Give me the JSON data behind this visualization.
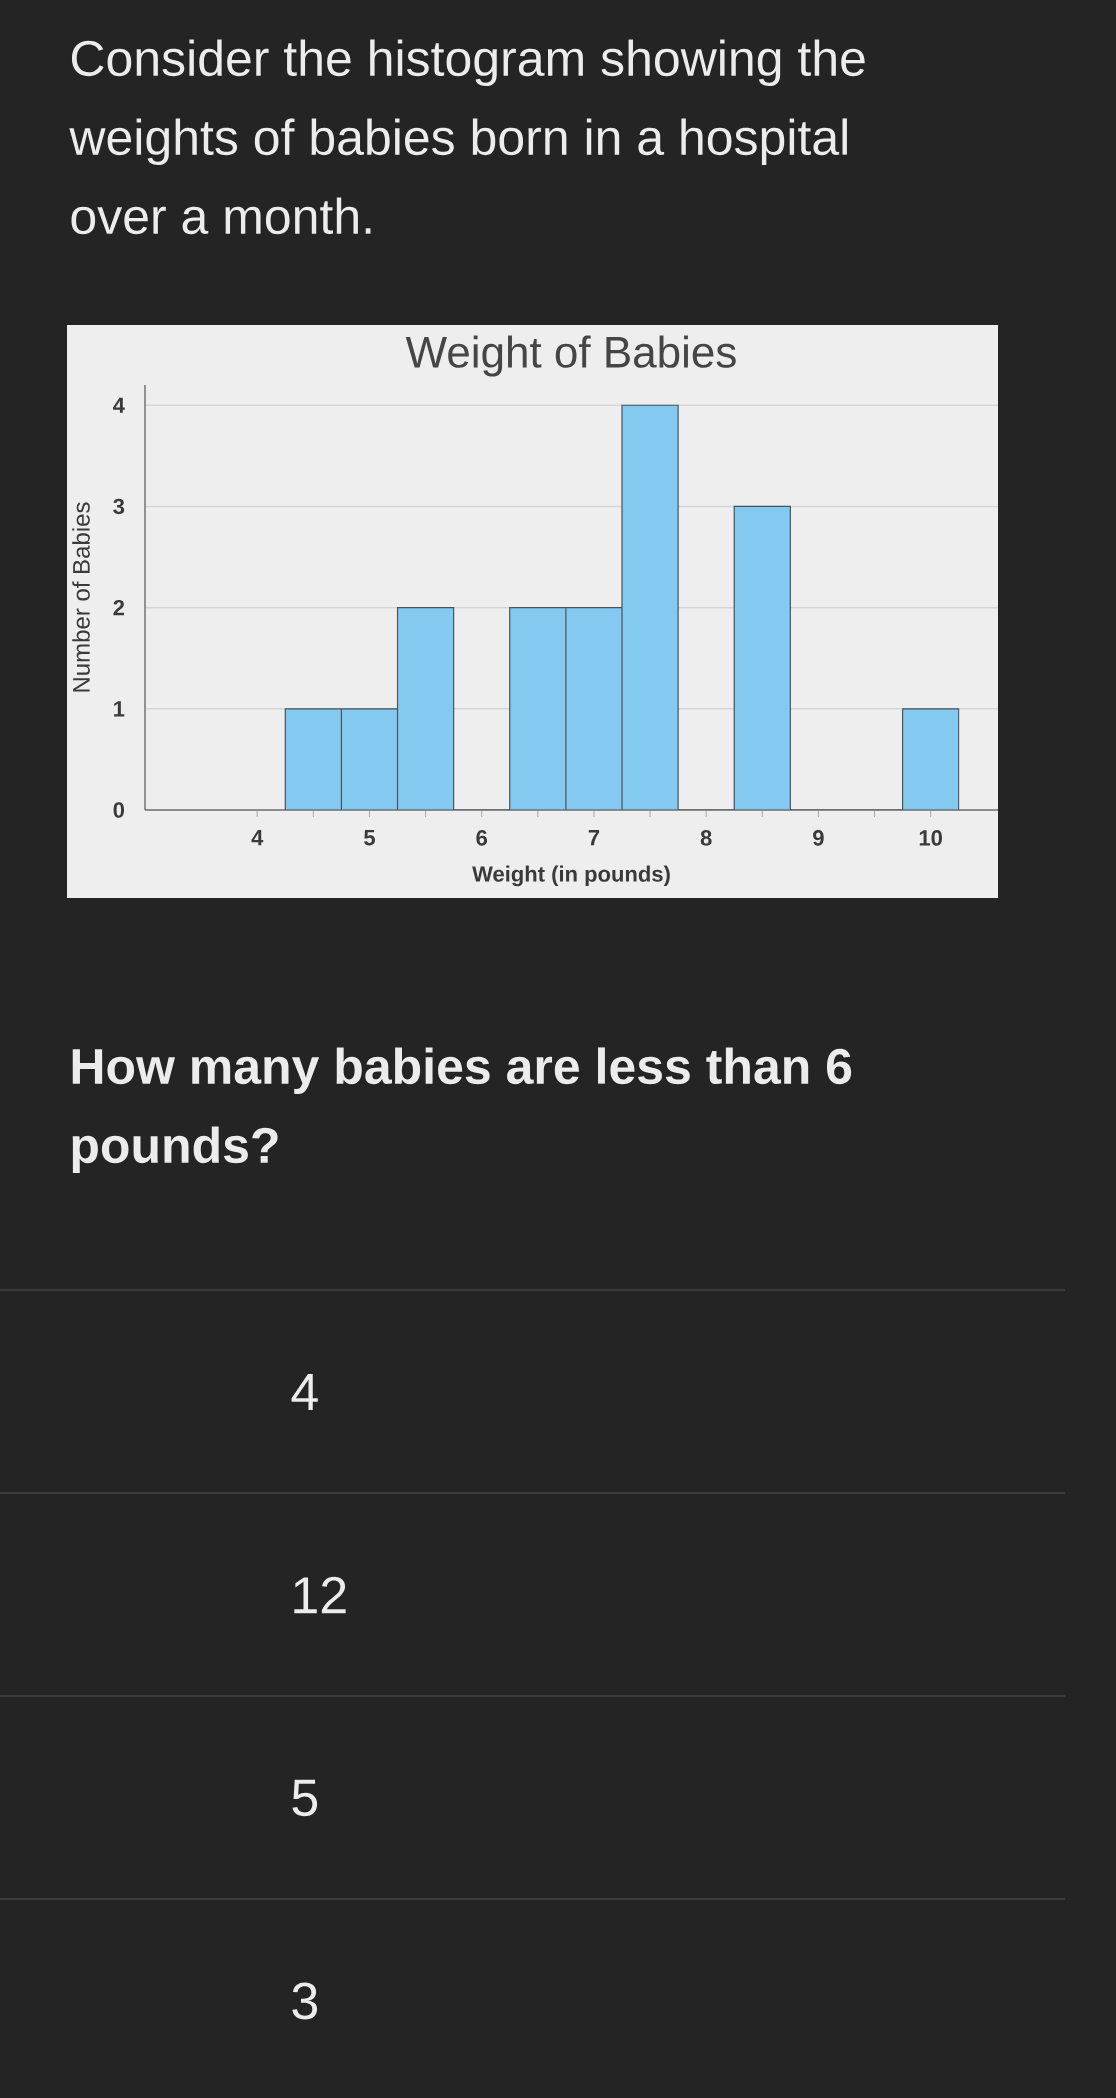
{
  "chart_data": {
    "type": "histogram",
    "title": "Weight of Babies",
    "xlabel": "Weight (in pounds)",
    "ylabel": "Number of Babies",
    "bins": [
      4.25,
      4.75,
      5.25,
      5.75,
      6.25,
      6.75,
      7.25,
      7.75,
      8.25,
      8.75,
      9.25,
      9.75,
      10.25
    ],
    "values": [
      1,
      1,
      2,
      0,
      2,
      2,
      4,
      0,
      3,
      0,
      0,
      1
    ],
    "color": "#84c9f0",
    "xlim": [
      3,
      10.6
    ],
    "ylim": [
      0,
      4.2
    ],
    "xticks": [
      4,
      {
        "value": 4.5,
        "label": null
      },
      5,
      {
        "value": 5.5,
        "label": null
      },
      6,
      {
        "value": 6.5,
        "label": null
      },
      7,
      {
        "value": 7.5,
        "label": null
      },
      8,
      {
        "value": 8.5,
        "label": null
      },
      9,
      {
        "value": 9.5,
        "label": null
      },
      10
    ],
    "yticks": [
      0,
      1,
      2,
      3,
      4
    ],
    "grid": "y",
    "annotations": [
      "Consider the histogram showing the weights of babies born in a hospital over a month.",
      "How many babies are less than 6 pounds?",
      "4",
      "12",
      "5",
      "3"
    ]
  }
}
